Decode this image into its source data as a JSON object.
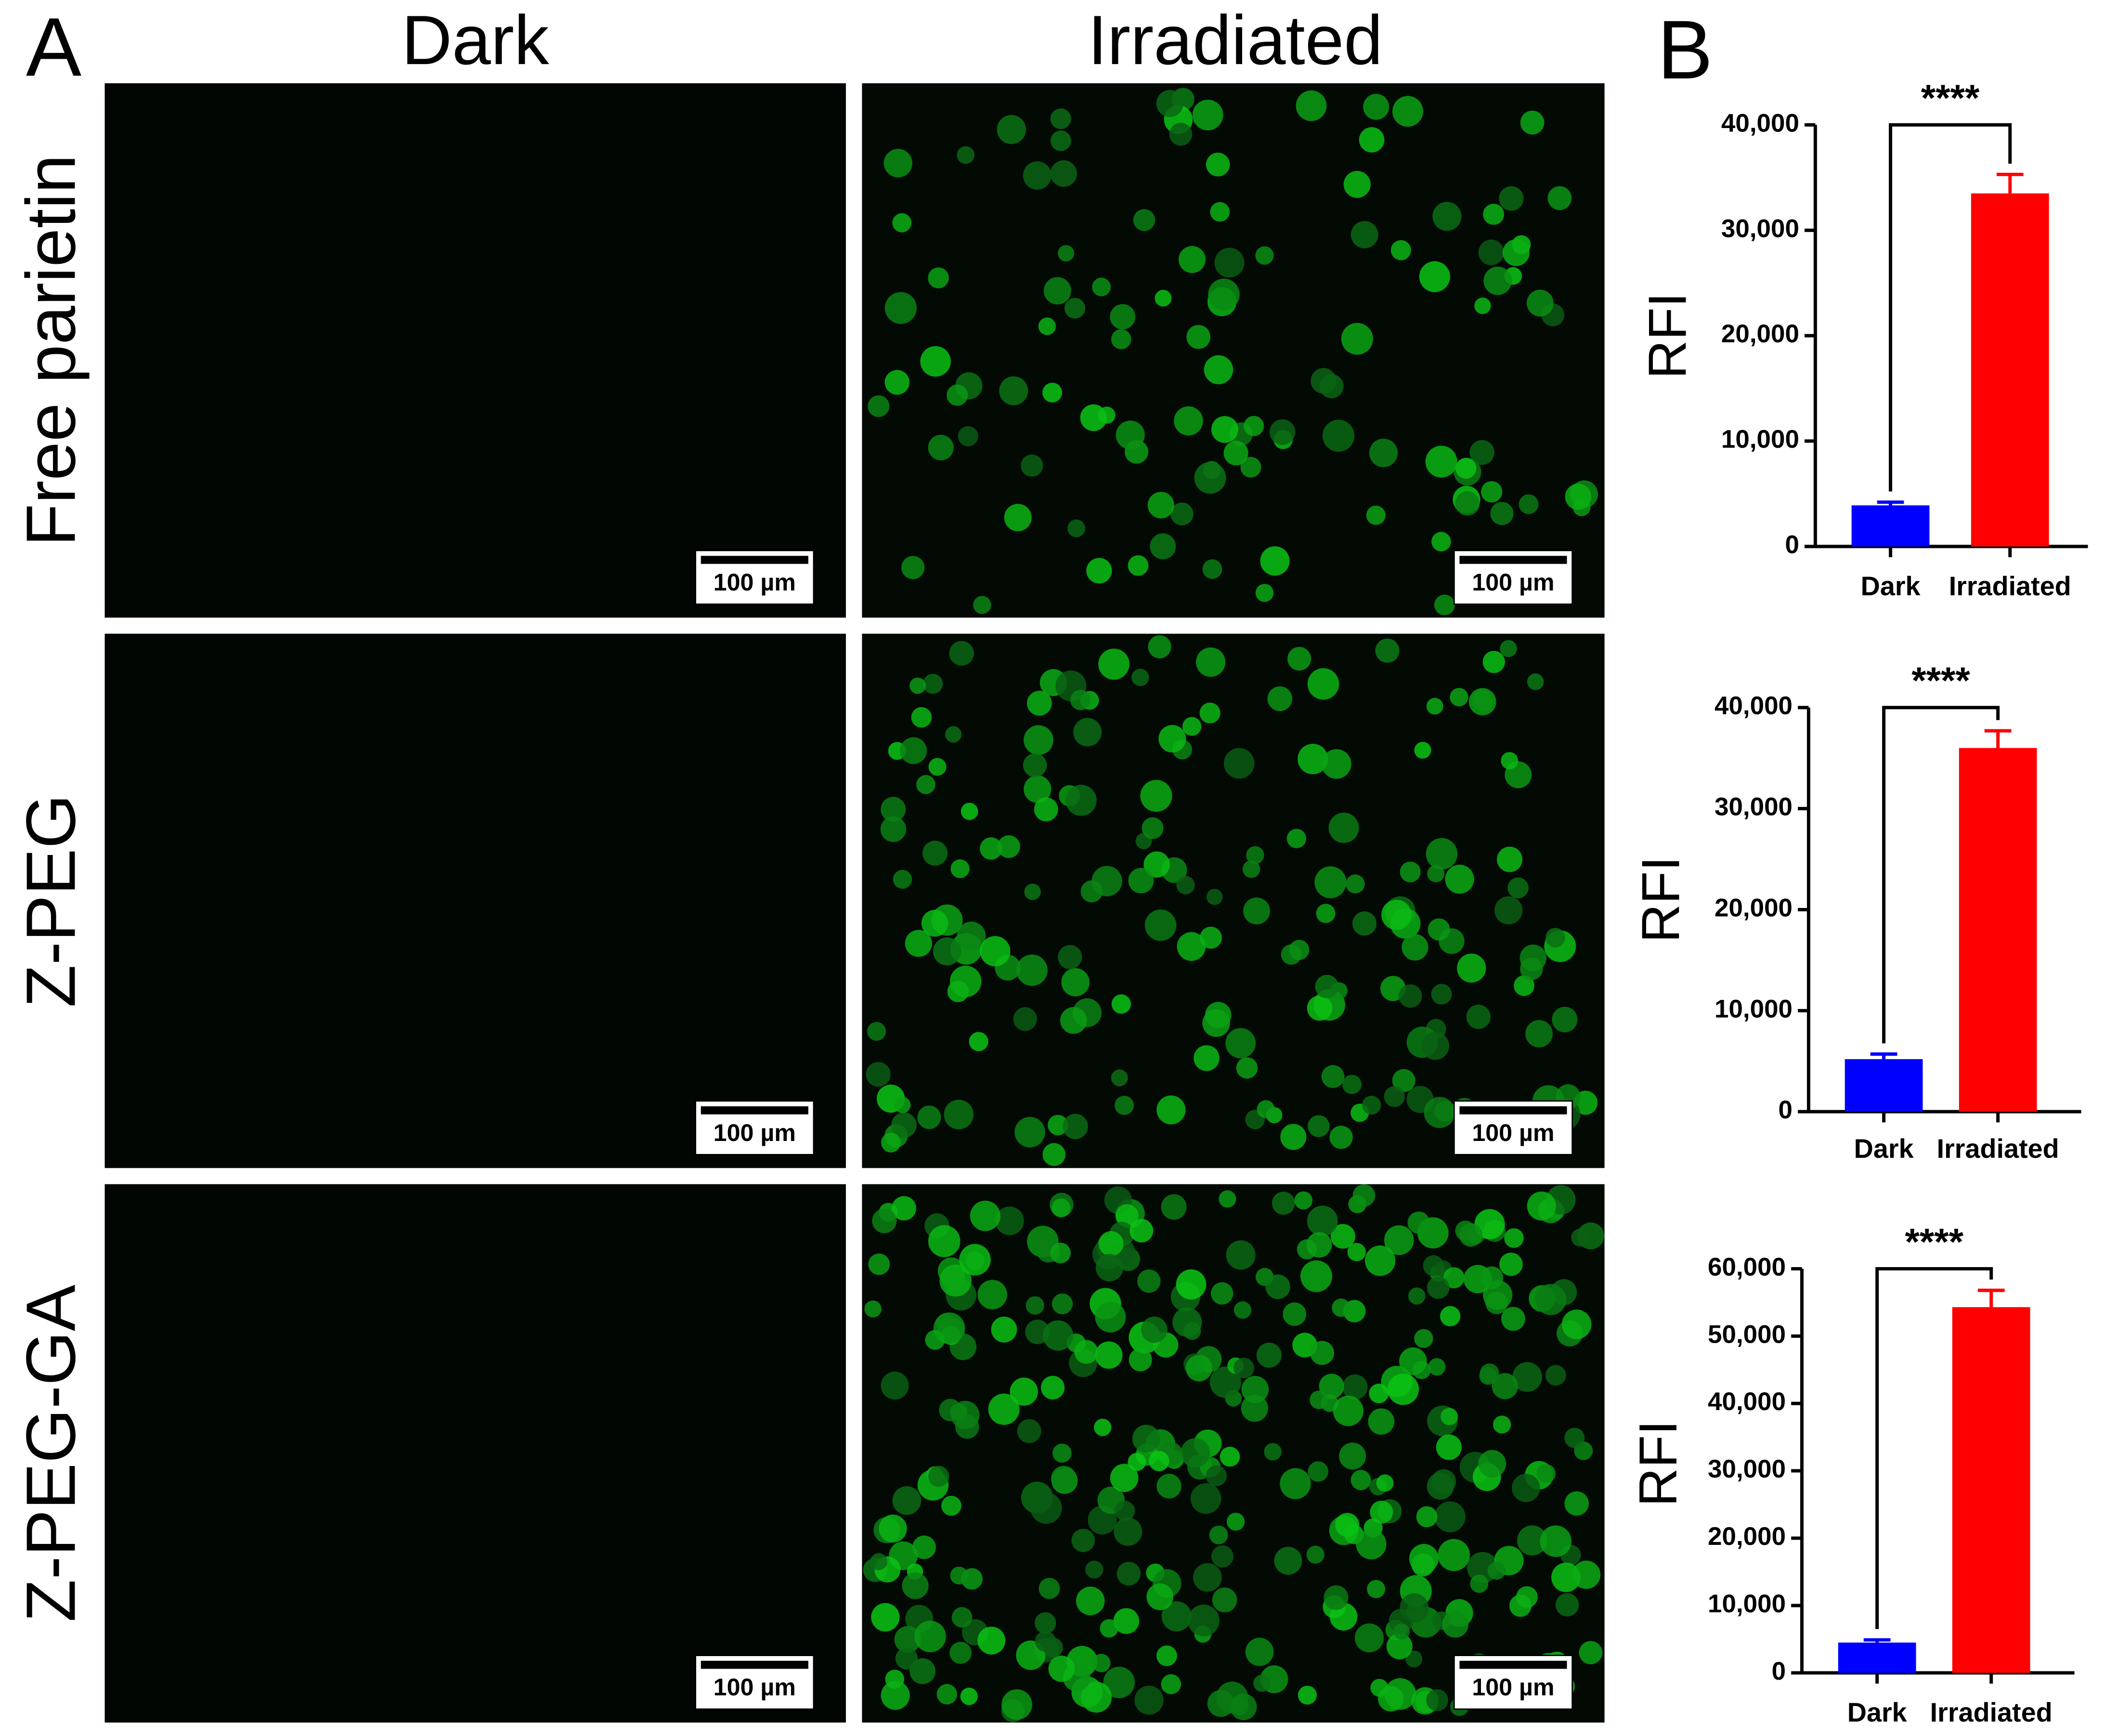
{
  "panel_labels": [
    "A",
    "B"
  ],
  "columns": [
    "Dark",
    "Irradiated"
  ],
  "rows": [
    "Free parietin",
    "Z-PEG",
    "Z-PEG-GA"
  ],
  "scale_bars": [
    "100 µm",
    "100 µm",
    "100 µm",
    "100 µm",
    "100 µm",
    "100 µm"
  ],
  "chart_data": [
    {
      "type": "bar",
      "y_label": "RFI",
      "categories": [
        "Dark",
        "Irradiated"
      ],
      "values": [
        3900,
        33500
      ],
      "errors": [
        300,
        1800
      ],
      "colors": [
        "#0000ff",
        "#ff0000"
      ],
      "significance": "****",
      "ylim": [
        0,
        40000
      ],
      "yticks": [
        0,
        {
          "value": 10000,
          "label": "10,000"
        },
        {
          "value": 20000,
          "label": "20,000"
        },
        {
          "value": 30000,
          "label": "30,000"
        },
        {
          "value": 40000,
          "label": "40,000"
        }
      ]
    },
    {
      "type": "bar",
      "y_label": "RFI",
      "categories": [
        "Dark",
        "Irradiated"
      ],
      "values": [
        5200,
        36000
      ],
      "errors": [
        500,
        1700
      ],
      "colors": [
        "#0000ff",
        "#ff0000"
      ],
      "significance": "****",
      "ylim": [
        0,
        40000
      ],
      "yticks": [
        0,
        {
          "value": 10000,
          "label": "10,000"
        },
        {
          "value": 20000,
          "label": "20,000"
        },
        {
          "value": 30000,
          "label": "30,000"
        },
        {
          "value": 40000,
          "label": "40,000"
        }
      ]
    },
    {
      "type": "bar",
      "y_label": "RFI",
      "categories": [
        "Dark",
        "Irradiated"
      ],
      "values": [
        4500,
        54300
      ],
      "errors": [
        400,
        2500
      ],
      "colors": [
        "#0000ff",
        "#ff0000"
      ],
      "significance": "****",
      "ylim": [
        0,
        60000
      ],
      "yticks": [
        0,
        {
          "value": 10000,
          "label": "10,000"
        },
        {
          "value": 20000,
          "label": "20,000"
        },
        {
          "value": 30000,
          "label": "30,000"
        },
        {
          "value": 40000,
          "label": "40,000"
        },
        {
          "value": 50000,
          "label": "50,000"
        },
        {
          "value": 60000,
          "label": "60,000"
        }
      ]
    }
  ]
}
